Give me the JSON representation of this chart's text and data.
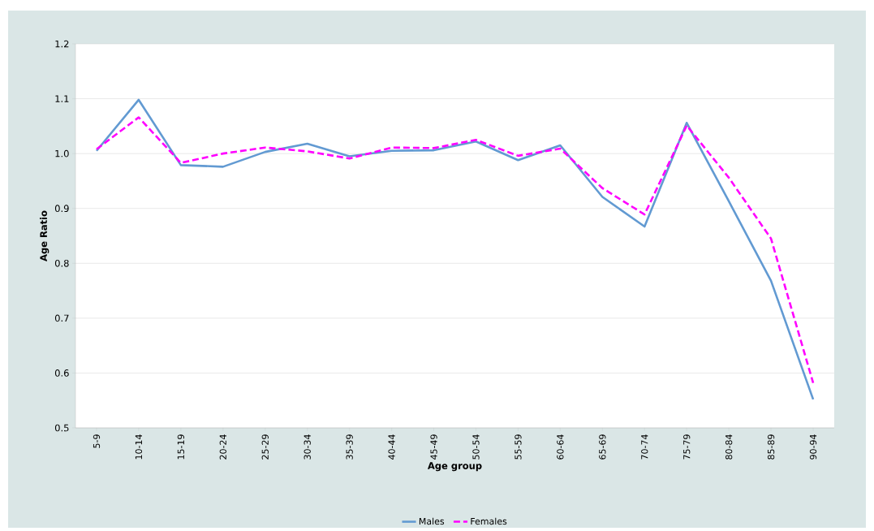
{
  "chart_data": {
    "type": "line",
    "xlabel": "Age group",
    "ylabel": "Age Ratio",
    "categories": [
      "5-9",
      "10-14",
      "15-19",
      "20-24",
      "25-29",
      "30-34",
      "35-39",
      "40-44",
      "45-49",
      "50-54",
      "55-59",
      "60-64",
      "65-69",
      "70-74",
      "75-79",
      "80-84",
      "85-89",
      "90-94"
    ],
    "series": [
      {
        "name": "Males",
        "color": "#629ad2",
        "line_style": "solid",
        "values": [
          1.005,
          1.098,
          0.979,
          0.976,
          1.003,
          1.018,
          0.995,
          1.005,
          1.006,
          1.022,
          0.988,
          1.015,
          0.921,
          0.867,
          1.056,
          0.913,
          0.768,
          0.552
        ]
      },
      {
        "name": "Females",
        "color": "#ff00ff",
        "line_style": "dashed",
        "values": [
          1.008,
          1.066,
          0.983,
          1.0,
          1.011,
          1.004,
          0.991,
          1.011,
          1.01,
          1.025,
          0.996,
          1.009,
          0.937,
          0.889,
          1.051,
          0.956,
          0.845,
          0.582
        ]
      }
    ],
    "ylim": [
      0.5,
      1.2
    ],
    "yticks": [
      0.5,
      0.6,
      0.7,
      0.8,
      0.9,
      {
        "value": 1,
        "label": "1.0"
      },
      1.1,
      1.2
    ],
    "grid": "y",
    "legend": "bottom",
    "marker": "none"
  }
}
